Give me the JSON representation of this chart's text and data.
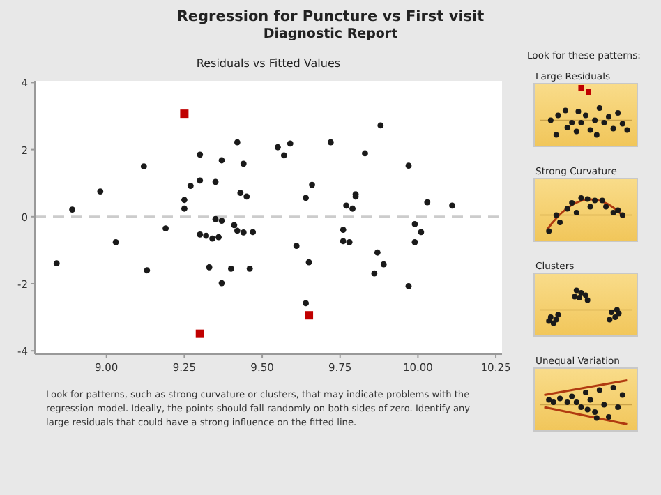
{
  "chart_data": {
    "type": "scatter",
    "title": "Regression for Puncture vs First visit",
    "subtitle": "Diagnostic Report",
    "annotations": [
      "Residuals vs Fitted Values",
      "Look for patterns, such as strong curvature or clusters, that may indicate problems with the regression model. Ideally, the points should fall randomly on both sides of zero. Identify any large residuals that could have a strong influence on the fitted line.",
      "Look for these patterns:",
      "Large Residuals",
      "Strong Curvature",
      "Clusters",
      "Unequal Variation"
    ],
    "xlim": [
      8.77,
      10.27
    ],
    "xticks": [
      {
        "value": 9,
        "label": "9.00"
      },
      {
        "value": 9.25,
        "label": "9.25"
      },
      {
        "value": 9.5,
        "label": "9.50"
      },
      {
        "value": 9.75,
        "label": "9.75"
      },
      {
        "value": 10,
        "label": "10.00"
      },
      {
        "value": 10.25,
        "label": "10.25"
      }
    ],
    "ylim": [
      -4.1,
      4.05
    ],
    "yticks": [
      -4,
      -2,
      0,
      2,
      4
    ],
    "grid": false,
    "ref_lines": [
      {
        "axis": "y",
        "value": 0,
        "color": "#cccccc",
        "line_style": "dashed"
      }
    ],
    "series": [
      {
        "color": "#1a1a1a",
        "marker": "circle",
        "x": [
          8.84,
          8.89,
          8.98,
          9.03,
          9.12,
          9.13,
          9.19,
          9.25,
          9.25,
          9.27,
          9.3,
          9.3,
          9.3,
          9.32,
          9.34,
          9.33,
          9.35,
          9.35,
          9.37,
          9.36,
          9.37,
          9.37,
          9.4,
          9.41,
          9.42,
          9.42,
          9.44,
          9.43,
          9.45,
          9.44,
          9.47,
          9.46,
          9.55,
          9.57,
          9.59,
          9.61,
          9.64,
          9.66,
          9.65,
          9.64,
          9.72,
          9.88,
          9.83,
          9.97,
          9.8,
          9.8,
          9.77,
          9.79,
          10.03,
          10.11,
          9.76,
          9.76,
          9.78,
          9.99,
          10.01,
          9.99,
          9.87,
          9.89,
          9.86,
          9.97
        ],
        "values": [
          -1.39,
          0.21,
          0.75,
          -0.76,
          1.5,
          -1.6,
          -0.35,
          0.24,
          0.5,
          0.92,
          1.08,
          1.85,
          -0.53,
          -0.57,
          -0.65,
          -1.51,
          1.04,
          -0.07,
          -0.12,
          -0.61,
          1.68,
          -1.98,
          -1.55,
          -0.25,
          2.22,
          -0.42,
          1.58,
          0.71,
          0.6,
          -0.47,
          -0.46,
          -1.55,
          2.07,
          1.83,
          2.18,
          -0.87,
          0.56,
          0.95,
          -1.36,
          -2.58,
          2.22,
          2.72,
          1.89,
          1.52,
          0.67,
          0.6,
          0.33,
          0.24,
          0.43,
          0.33,
          -0.39,
          -0.73,
          -0.76,
          -0.22,
          -0.46,
          -0.76,
          -1.07,
          -1.42,
          -1.69,
          -2.07
        ]
      },
      {
        "color": "#c00000",
        "marker": "square",
        "x": [
          9.25,
          9.3,
          9.65
        ],
        "values": [
          3.07,
          -3.49,
          -2.94
        ]
      }
    ]
  }
}
